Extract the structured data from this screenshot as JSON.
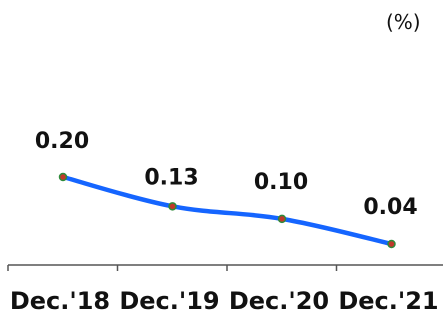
{
  "chart_data": {
    "type": "line",
    "unit": "(%)",
    "categories": [
      "Dec.'18",
      "Dec.'19",
      "Dec.'20",
      "Dec.'21"
    ],
    "series": [
      {
        "values": [
          0.2,
          0.13,
          0.1,
          0.04
        ],
        "data_labels": [
          "0.20",
          "0.13",
          "0.10",
          "0.04"
        ]
      }
    ],
    "legend": "none",
    "grid": false,
    "colors": {
      "line": "#1565ff",
      "marker_fill": "#c0392b",
      "marker_stroke": "#2e8b3a",
      "axis": "#555555",
      "text": "#111111"
    }
  }
}
